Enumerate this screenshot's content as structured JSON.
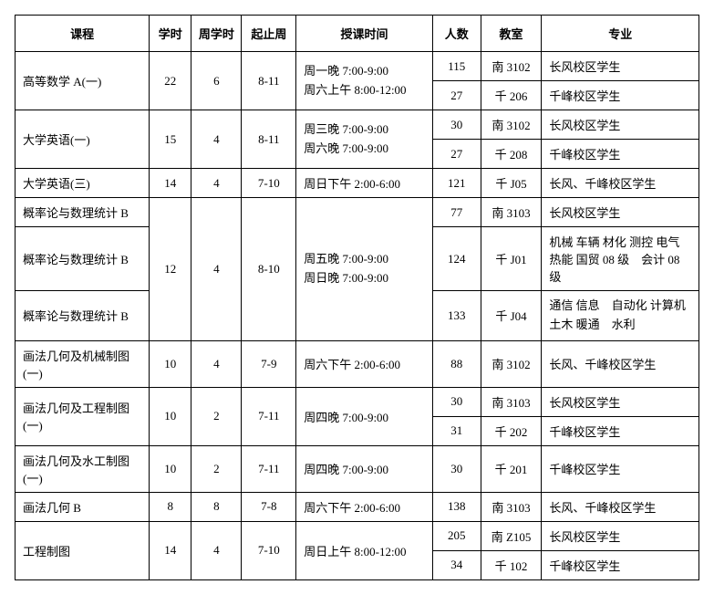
{
  "headers": {
    "course": "课程",
    "hours": "学时",
    "weekHours": "周学时",
    "weekRange": "起止周",
    "time": "授课时间",
    "count": "人数",
    "room": "教室",
    "major": "专业"
  },
  "rows": {
    "r1": {
      "course": "高等数学 A(一)",
      "hours": "22",
      "weekHours": "6",
      "weekRange": "8-11",
      "time1": "周一晚 7:00-9:00",
      "time2": "周六上午 8:00-12:00",
      "count1": "115",
      "room1": "南 3102",
      "major1": "长风校区学生",
      "count2": "27",
      "room2": "千 206",
      "major2": "千峰校区学生"
    },
    "r2": {
      "course": "大学英语(一)",
      "hours": "15",
      "weekHours": "4",
      "weekRange": "8-11",
      "time1": "周三晚 7:00-9:00",
      "time2": "周六晚 7:00-9:00",
      "count1": "30",
      "room1": "南 3102",
      "major1": "长风校区学生",
      "count2": "27",
      "room2": "千 208",
      "major2": "千峰校区学生"
    },
    "r3": {
      "course": "大学英语(三)",
      "hours": "14",
      "weekHours": "4",
      "weekRange": "7-10",
      "time": "周日下午 2:00-6:00",
      "count": "121",
      "room": "千 J05",
      "major": "长风、千峰校区学生"
    },
    "r4": {
      "course1": "概率论与数理统计 B",
      "course2": "概率论与数理统计 B",
      "course3": "概率论与数理统计 B",
      "hours": "12",
      "weekHours": "4",
      "weekRange": "8-10",
      "time1": "周五晚 7:00-9:00",
      "time2": "周日晚 7:00-9:00",
      "count1": "77",
      "room1": "南 3103",
      "major1": "长风校区学生",
      "count2": "124",
      "room2": "千 J01",
      "major2": "机械 车辆 材化 测控 电气 热能 国贸 08 级　会计 08 级",
      "count3": "133",
      "room3": "千 J04",
      "major3": "通信 信息　自动化 计算机 土木\n暖通　水利"
    },
    "r5": {
      "course": "画法几何及机械制图(一)",
      "hours": "10",
      "weekHours": "4",
      "weekRange": "7-9",
      "time": "周六下午 2:00-6:00",
      "count": "88",
      "room": "南 3102",
      "major": "长风、千峰校区学生"
    },
    "r6": {
      "course": "画法几何及工程制图(一)",
      "hours": "10",
      "weekHours": "2",
      "weekRange": "7-11",
      "time": "周四晚 7:00-9:00",
      "count1": "30",
      "room1": "南 3103",
      "major1": "长风校区学生",
      "count2": "31",
      "room2": "千 202",
      "major2": "千峰校区学生"
    },
    "r7": {
      "course": "画法几何及水工制图(一)",
      "hours": "10",
      "weekHours": "2",
      "weekRange": "7-11",
      "time": "周四晚 7:00-9:00",
      "count": "30",
      "room": "千 201",
      "major": "千峰校区学生"
    },
    "r8": {
      "course": "画法几何 B",
      "hours": "8",
      "weekHours": "8",
      "weekRange": "7-8",
      "time": "周六下午 2:00-6:00",
      "count": "138",
      "room": "南 3103",
      "major": "长风、千峰校区学生"
    },
    "r9": {
      "course": "工程制图",
      "hours": "14",
      "weekHours": "4",
      "weekRange": "7-10",
      "time": "周日上午 8:00-12:00",
      "count1": "205",
      "room1": "南 Z105",
      "major1": "长风校区学生",
      "count2": "34",
      "room2": "千 102",
      "major2": "千峰校区学生"
    }
  }
}
